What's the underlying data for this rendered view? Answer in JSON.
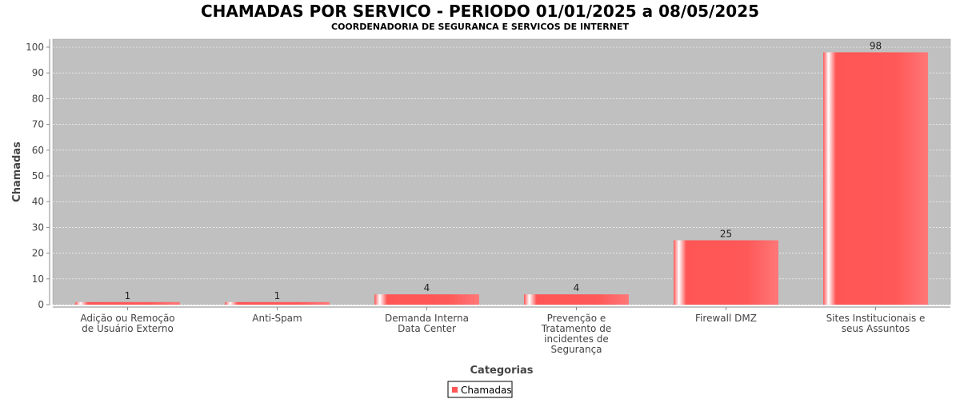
{
  "chart_data": {
    "type": "bar",
    "title": "CHAMADAS POR SERVICO - PERIODO 01/01/2025 a 08/05/2025",
    "subtitle": "COORDENADORIA DE SEGURANCA E SERVICOS DE INTERNET",
    "xlabel": "Categorias",
    "ylabel": "Chamadas",
    "categories": [
      [
        "Adição ou Remoção",
        "de Usuário Externo"
      ],
      [
        "Anti-Spam"
      ],
      [
        "Demanda Interna",
        "Data Center"
      ],
      [
        "Prevenção e",
        "Tratamento de",
        "incidentes de",
        "Segurança"
      ],
      [
        "Firewall DMZ"
      ],
      [
        "Sites Institucionais e",
        "seus Assuntos"
      ]
    ],
    "series": [
      {
        "name": "Chamadas",
        "values": [
          1,
          1,
          4,
          4,
          25,
          98
        ],
        "color": "#ff5555"
      }
    ],
    "ylim": [
      0,
      100
    ],
    "yticks": [
      0,
      10,
      20,
      30,
      40,
      50,
      60,
      70,
      80,
      90,
      100
    ],
    "grid": true,
    "legend": "bottom-center",
    "plot_background": "#c0c0c0"
  }
}
